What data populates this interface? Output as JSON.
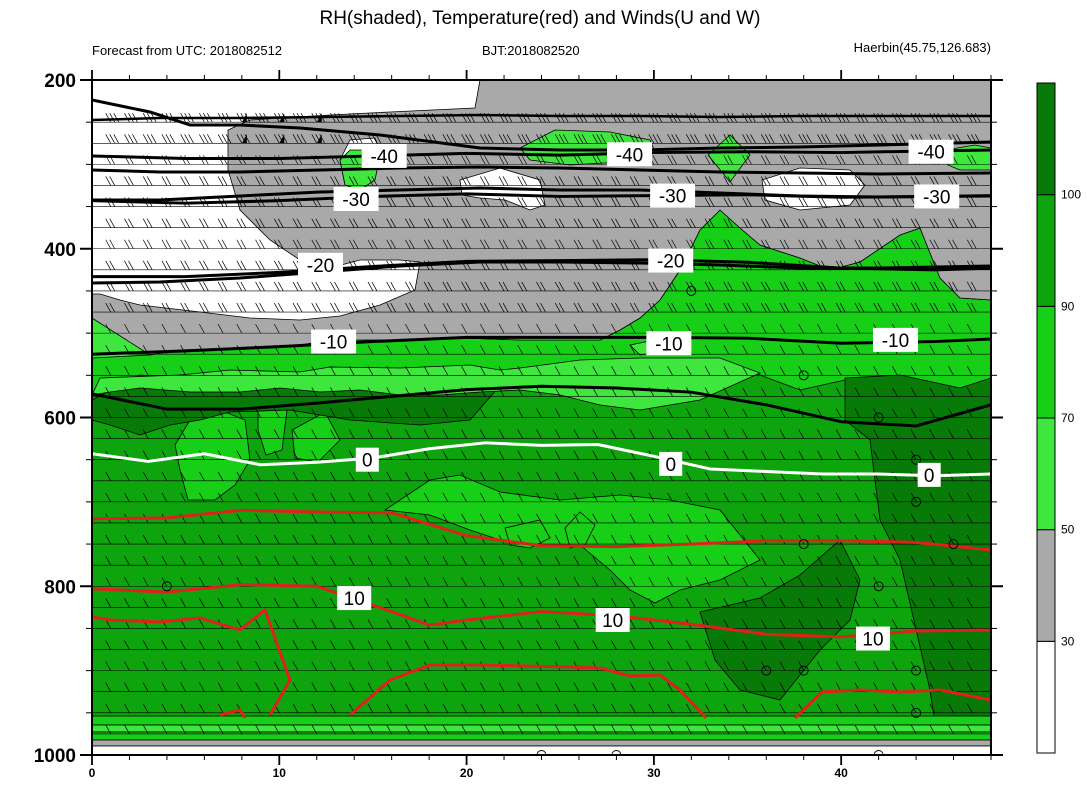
{
  "title": "RH(shaded), Temperature(red) and Winds(U and W)",
  "header": {
    "left": "Forecast from UTC: 2018082512",
    "center": "BJT:2018082520",
    "right": "Haerbin(45.75,126.683)"
  },
  "colors": {
    "rh_lt30": "#ffffff",
    "rh_30_50": "#a9a9a9",
    "rh_50_70": "#3ee63e",
    "rh_70_90": "#18cf18",
    "rh_90_100": "#0ea40e",
    "rh_gt100": "#077a07",
    "warm_isotherm": "#e0201c",
    "zero_isotherm": "#ffffff",
    "cold_isotherm": "#000000"
  },
  "chart_data": {
    "type": "heatmap",
    "title": "RH(shaded), Temperature(red) and Winds(U and W)",
    "xlabel": "",
    "ylabel": "",
    "xlim": [
      0,
      48
    ],
    "ylim": [
      1000,
      200
    ],
    "x_ticks": [
      0,
      10,
      20,
      30,
      40
    ],
    "y_ticks": [
      200,
      400,
      600,
      800,
      1000
    ],
    "colorbar": {
      "levels": [
        30,
        50,
        70,
        90,
        100
      ],
      "bins": [
        {
          "range": "<30",
          "color": "#ffffff"
        },
        {
          "range": "30-50",
          "color": "#a9a9a9"
        },
        {
          "range": "50-70",
          "color": "#3ee63e"
        },
        {
          "range": "70-90",
          "color": "#18cf18"
        },
        {
          "range": "90-100",
          "color": "#0ea40e"
        },
        {
          "range": ">100",
          "color": "#077a07"
        }
      ]
    },
    "temperature_contours": [
      {
        "label": "-40",
        "color": "#000000",
        "x": [
          0,
          5,
          10,
          15,
          20,
          25,
          30,
          35,
          40,
          45,
          48
        ],
        "y": [
          290,
          293,
          293,
          290,
          287,
          289,
          286,
          285,
          286,
          284,
          283
        ]
      },
      {
        "label": "-30",
        "color": "#000000",
        "x": [
          0,
          5,
          10,
          15,
          20,
          25,
          30,
          35,
          40,
          45,
          48
        ],
        "y": [
          343,
          346,
          343,
          338,
          335,
          338,
          337,
          336,
          339,
          338,
          337
        ]
      },
      {
        "label": "-20",
        "color": "#000000",
        "x": [
          0,
          5,
          10,
          15,
          20,
          25,
          30,
          35,
          40,
          45,
          48
        ],
        "y": [
          433,
          433,
          428,
          421,
          415,
          414,
          413,
          416,
          423,
          425,
          423
        ]
      },
      {
        "label": "-10",
        "color": "#000000",
        "x": [
          0,
          5,
          10,
          15,
          20,
          25,
          30,
          35,
          40,
          45,
          48
        ],
        "y": [
          525,
          521,
          516,
          510,
          505,
          505,
          505,
          506,
          512,
          510,
          507
        ]
      },
      {
        "label": "0",
        "color": "#ffffff",
        "x": [
          0,
          3,
          6,
          9,
          12,
          15,
          18,
          21,
          24,
          27,
          30,
          33,
          36,
          39,
          42,
          45,
          48
        ],
        "y": [
          643,
          652,
          643,
          656,
          653,
          648,
          637,
          630,
          633,
          632,
          646,
          661,
          664,
          667,
          667,
          669,
          667
        ]
      },
      {
        "label": "10",
        "color": "#e0201c",
        "x": [
          0,
          4,
          8,
          12,
          16,
          18,
          20,
          24,
          28,
          32,
          36,
          40,
          44,
          48
        ],
        "y": [
          803,
          807,
          798,
          800,
          830,
          846,
          840,
          830,
          835,
          845,
          857,
          860,
          853,
          852
        ]
      }
    ],
    "other_isotherms": [
      {
        "color": "#e0201c",
        "x": [
          0,
          4,
          8,
          12,
          16,
          20,
          24,
          28,
          32,
          36,
          40,
          44,
          48
        ],
        "y": [
          720,
          719,
          710,
          712,
          713,
          740,
          752,
          753,
          750,
          746,
          746,
          748,
          757
        ]
      },
      {
        "color": "#000000",
        "x": [
          0,
          4,
          8,
          12,
          16,
          20,
          24,
          28,
          32,
          36,
          40,
          44,
          48
        ],
        "y": [
          572,
          590,
          590,
          583,
          575,
          567,
          563,
          565,
          570,
          585,
          605,
          610,
          585
        ]
      }
    ]
  }
}
